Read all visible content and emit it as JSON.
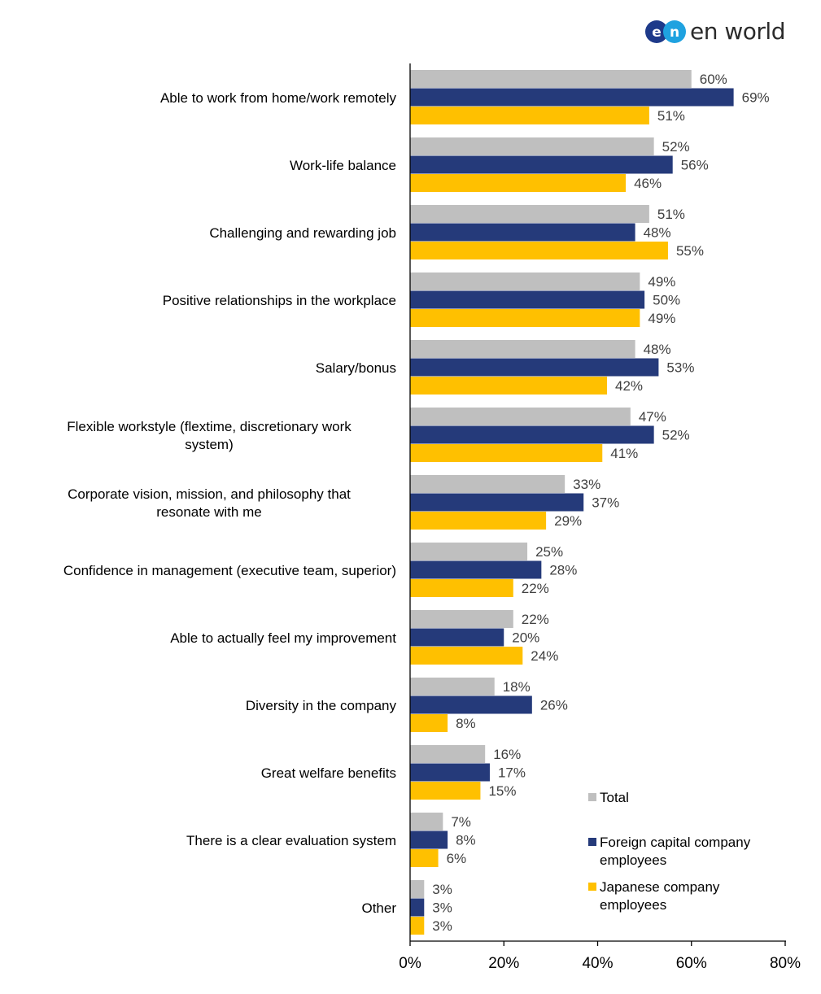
{
  "brand": {
    "logo_text": "en world"
  },
  "chart_data": {
    "type": "bar",
    "orientation": "horizontal",
    "categories": [
      "Able to work from home/work remotely",
      "Work-life balance",
      "Challenging and rewarding job",
      "Positive relationships in the workplace",
      "Salary/bonus",
      "Flexible workstyle (flextime, discretionary work system)",
      "Corporate vision, mission, and philosophy that resonate with me",
      "Confidence in management (executive team, superior)",
      "Able to actually feel my improvement",
      "Diversity in the company",
      "Great welfare benefits",
      "There is a clear evaluation system",
      "Other"
    ],
    "series": [
      {
        "name": "Total",
        "color": "#BFBFBF",
        "values": [
          60,
          52,
          51,
          49,
          48,
          47,
          33,
          25,
          22,
          18,
          16,
          7,
          3
        ]
      },
      {
        "name": "Foreign capital company employees",
        "color": "#253A7A",
        "values": [
          69,
          56,
          48,
          50,
          53,
          52,
          37,
          28,
          20,
          26,
          17,
          8,
          3
        ]
      },
      {
        "name": "Japanese company employees",
        "color": "#FFC000",
        "values": [
          51,
          46,
          55,
          49,
          42,
          41,
          29,
          22,
          24,
          8,
          15,
          6,
          3
        ]
      }
    ],
    "xlim": [
      0,
      80
    ],
    "x_ticks": [
      0,
      20,
      40,
      60,
      80
    ],
    "x_tick_suffix": "%",
    "value_label_suffix": "%",
    "legend_position": "bottom-right",
    "grid": false
  }
}
